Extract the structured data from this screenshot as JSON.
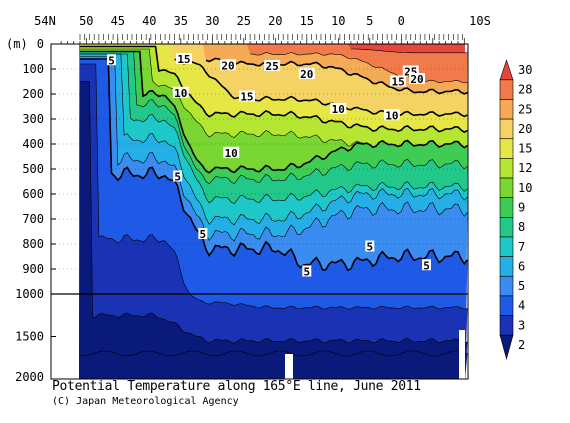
{
  "chart_data": {
    "type": "heatmap",
    "title": "Potential Temperature along 165°E line, June 2011",
    "credit": "(C) Japan Meteorological Agency",
    "depth_unit": "(m)",
    "x_ticks": [
      "54N",
      "50",
      "45",
      "40",
      "35",
      "30",
      "25",
      "20",
      "15",
      "10",
      "5",
      "0",
      "10S"
    ],
    "y_ticks_upper": [
      "0",
      "100",
      "200",
      "300",
      "400",
      "500",
      "600",
      "700",
      "800",
      "900",
      "1000"
    ],
    "y_ticks_lower": [
      "1500",
      "2000"
    ],
    "ylim_upper": [
      0,
      1000
    ],
    "ylim_lower": [
      1000,
      2000
    ],
    "colorbar_levels": [
      2,
      3,
      4,
      5,
      6,
      7,
      8,
      9,
      10,
      12,
      15,
      20,
      25,
      28,
      30
    ],
    "colorbar_labels": [
      "2",
      "3",
      "4",
      "5",
      "6",
      "7",
      "8",
      "9",
      "10",
      "12",
      "15",
      "20",
      "25",
      "28",
      "30"
    ],
    "colors": [
      "#0a1a7a",
      "#1a32b4",
      "#1f5ae6",
      "#3b8cf0",
      "#24b0e6",
      "#1ec8c8",
      "#22c88a",
      "#3ecc55",
      "#7ad632",
      "#b4e632",
      "#e6e646",
      "#f5d264",
      "#f5aa55",
      "#f07a4a",
      "#e6463c"
    ],
    "contour_labels": [
      {
        "text": "5",
        "lat": 46,
        "depth": 65
      },
      {
        "text": "15",
        "lat": 34.5,
        "depth": 60
      },
      {
        "text": "20",
        "lat": 27.5,
        "depth": 85
      },
      {
        "text": "25",
        "lat": 20.5,
        "depth": 88
      },
      {
        "text": "20",
        "lat": 15,
        "depth": 120
      },
      {
        "text": "25",
        "lat": -1.5,
        "depth": 110
      },
      {
        "text": "20",
        "lat": -2.5,
        "depth": 140
      },
      {
        "text": "15",
        "lat": 0.5,
        "depth": 150
      },
      {
        "text": "10",
        "lat": 35,
        "depth": 195
      },
      {
        "text": "15",
        "lat": 24.5,
        "depth": 210
      },
      {
        "text": "10",
        "lat": 10,
        "depth": 260
      },
      {
        "text": "10",
        "lat": 1.5,
        "depth": 285
      },
      {
        "text": "10",
        "lat": 27,
        "depth": 435
      },
      {
        "text": "5",
        "lat": 35.5,
        "depth": 530
      },
      {
        "text": "5",
        "lat": 31.5,
        "depth": 760
      },
      {
        "text": "5",
        "lat": 5,
        "depth": 810
      },
      {
        "text": "5",
        "lat": 15,
        "depth": 910
      },
      {
        "text": "5",
        "lat": -4,
        "depth": 885
      }
    ]
  }
}
